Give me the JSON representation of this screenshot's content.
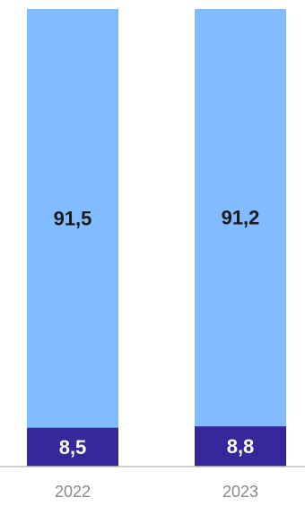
{
  "chart_data": {
    "type": "bar",
    "stacked": true,
    "orientation": "vertical",
    "categories": [
      "2022",
      "2023"
    ],
    "series": [
      {
        "values": [
          8.5,
          8.8
        ],
        "labels": [
          "8,5",
          "8,8"
        ],
        "color": "#36279a",
        "label_color": "#ffffff"
      },
      {
        "values": [
          91.5,
          91.2
        ],
        "labels": [
          "91,5",
          "91,2"
        ],
        "color": "#80bcff",
        "label_color": "#1a1a1a"
      }
    ],
    "ylim": [
      0,
      100
    ],
    "grid": false,
    "legend": "none",
    "baseline_color": "#bfbfbf"
  }
}
